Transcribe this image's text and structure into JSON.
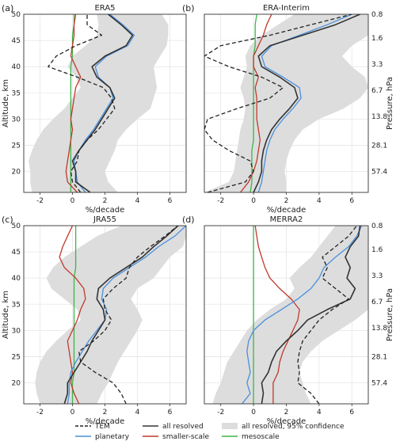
{
  "colors": {
    "TEM": "#222222",
    "all_resolved": "#333333",
    "planetary": "#4a8fdc",
    "smaller_scale": "#c0392b",
    "mesoscale": "#3cb54a",
    "confidence": "#dddddd",
    "grid": "#e6e6e6"
  },
  "legend": [
    {
      "key": "TEM",
      "label": "TEM",
      "style": "dashed",
      "color": "#222222"
    },
    {
      "key": "all_resolved",
      "label": "all resolved",
      "style": "solid",
      "color": "#333333"
    },
    {
      "key": "confidence",
      "label": "all resolved, 95% confidence",
      "style": "band",
      "color": "#dddddd"
    },
    {
      "key": "planetary",
      "label": "planetary",
      "style": "solid",
      "color": "#4a8fdc"
    },
    {
      "key": "smaller_scale",
      "label": "smaller-scale",
      "style": "solid",
      "color": "#c0392b"
    },
    {
      "key": "mesoscale",
      "label": "mesoscale",
      "style": "solid",
      "color": "#3cb54a"
    }
  ],
  "chart_data": [
    {
      "type": "line",
      "tag": "(a)",
      "title": "ERA5",
      "xlabel": "%/decade",
      "ylabel": "Altitude, km",
      "right_label": "",
      "xlim": [
        -3,
        7
      ],
      "ylim": [
        16,
        50
      ],
      "xticks": [
        "-2",
        "0",
        "2",
        "4",
        "6"
      ],
      "yticks": [
        "20",
        "25",
        "30",
        "35",
        "40",
        "45",
        "50"
      ],
      "pressure_ticks": [],
      "y": [
        16,
        18,
        20,
        22,
        24,
        26,
        28,
        30,
        32,
        34,
        36,
        38,
        40,
        42,
        44,
        46,
        48,
        50
      ],
      "band_low": [
        -2.5,
        -2.6,
        -2.6,
        -2.7,
        -2.5,
        -2.2,
        -1.8,
        -1.2,
        -0.5,
        0.0,
        0.5,
        0.2,
        -0.3,
        0.0,
        0.8,
        1.5,
        1.6,
        1.5
      ],
      "band_high": [
        2.8,
        2.2,
        2.0,
        2.3,
        2.6,
        2.8,
        3.3,
        4.0,
        4.8,
        5.0,
        5.2,
        5.1,
        5.0,
        5.4,
        5.8,
        5.9,
        5.9,
        5.5
      ],
      "series": [
        {
          "name": "TEM",
          "x": [
            0.5,
            0.0,
            -0.1,
            0.3,
            0.4,
            0.9,
            1.6,
            2.1,
            2.6,
            2.4,
            1.9,
            0.3,
            -1.5,
            -1.0,
            0.2,
            1.8,
            0.9,
            0.9
          ]
        },
        {
          "name": "all resolved",
          "x": [
            1.1,
            0.2,
            0.2,
            0.0,
            0.4,
            0.9,
            1.4,
            1.8,
            2.2,
            2.6,
            2.3,
            1.5,
            1.2,
            2.0,
            3.3,
            3.7,
            3.0,
            2.2
          ]
        },
        {
          "name": "planetary",
          "x": [
            0.8,
            0.3,
            0.2,
            0.1,
            0.4,
            0.8,
            1.3,
            1.7,
            2.1,
            2.5,
            2.3,
            1.6,
            1.4,
            2.1,
            3.4,
            3.8,
            3.1,
            2.3
          ]
        },
        {
          "name": "smaller-scale",
          "x": [
            0.3,
            -0.3,
            -0.4,
            -0.3,
            -0.2,
            -0.1,
            0.0,
            -0.1,
            0.0,
            0.1,
            0.2,
            0.5,
            0.2,
            -0.1,
            0.0,
            0.1,
            0.1,
            0.2
          ]
        },
        {
          "name": "mesoscale",
          "x": [
            -0.1,
            -0.1,
            -0.1,
            -0.1,
            -0.1,
            -0.1,
            -0.1,
            -0.1,
            -0.1,
            -0.1,
            -0.1,
            -0.1,
            -0.1,
            0.0,
            0.0,
            0.0,
            0.1,
            0.1
          ]
        }
      ]
    },
    {
      "type": "line",
      "tag": "(b)",
      "title": "ERA-Interim",
      "xlabel": "%/decade",
      "ylabel": "",
      "right_label": "Pressure, hPa",
      "xlim": [
        -3,
        7
      ],
      "ylim": [
        16,
        50
      ],
      "xticks": [
        "-2",
        "0",
        "2",
        "4",
        "6"
      ],
      "yticks": [],
      "pressure_ticks": [
        {
          "alt": 50,
          "label": "0.8"
        },
        {
          "alt": 45.5,
          "label": "1.6"
        },
        {
          "alt": 40.5,
          "label": "3.3"
        },
        {
          "alt": 35.5,
          "label": "6.7"
        },
        {
          "alt": 30.5,
          "label": "13.8"
        },
        {
          "alt": 25,
          "label": "28.1"
        },
        {
          "alt": 20,
          "label": "57.4"
        }
      ],
      "y": [
        16,
        18,
        20,
        22,
        24,
        26,
        28,
        30,
        32,
        34,
        36,
        38,
        40,
        42,
        44,
        46,
        48,
        50
      ],
      "band_low": [
        -3.0,
        -1.5,
        -1.2,
        -1.1,
        -1.0,
        -0.9,
        -0.8,
        -0.6,
        -0.5,
        -0.6,
        -0.8,
        -0.6,
        -0.4,
        -0.5,
        -0.2,
        0.5,
        1.5,
        2.5
      ],
      "band_high": [
        2.0,
        2.0,
        1.9,
        2.0,
        2.2,
        2.5,
        3.0,
        4.0,
        5.5,
        6.5,
        7.0,
        6.8,
        6.0,
        5.4,
        6.0,
        7.0,
        7.0,
        7.0
      ],
      "series": [
        {
          "name": "TEM",
          "x": [
            -2.8,
            -0.5,
            0.0,
            -0.2,
            -1.5,
            -2.5,
            -3.0,
            -2.8,
            -1.0,
            1.0,
            1.8,
            0.5,
            -1.5,
            -3.0,
            -2.0,
            1.0,
            3.5,
            6.0
          ]
        },
        {
          "name": "all resolved",
          "x": [
            0.0,
            0.3,
            0.5,
            0.5,
            0.6,
            0.8,
            1.1,
            1.6,
            2.2,
            2.7,
            2.5,
            1.6,
            0.5,
            0.3,
            1.0,
            3.0,
            5.0,
            6.5
          ]
        },
        {
          "name": "planetary",
          "x": [
            0.3,
            0.5,
            0.6,
            0.7,
            0.8,
            1.0,
            1.3,
            1.8,
            2.4,
            2.9,
            2.8,
            1.8,
            0.7,
            0.5,
            1.1,
            2.8,
            4.5,
            6.0
          ]
        },
        {
          "name": "smaller-scale",
          "x": [
            -0.8,
            -0.3,
            0.0,
            0.2,
            0.3,
            0.4,
            0.3,
            0.2,
            0.2,
            0.2,
            0.1,
            0.3,
            0.0,
            0.0,
            0.3,
            0.6,
            0.8,
            1.1
          ]
        },
        {
          "name": "mesoscale",
          "x": [
            -0.2,
            -0.1,
            -0.1,
            -0.1,
            -0.1,
            0.0,
            0.0,
            0.0,
            0.0,
            0.0,
            0.0,
            0.0,
            0.0,
            0.0,
            0.1,
            0.1,
            0.1,
            0.2
          ]
        }
      ]
    },
    {
      "type": "line",
      "tag": "(c)",
      "title": "JRA55",
      "xlabel": "%/decade",
      "ylabel": "Altitude, km",
      "right_label": "",
      "xlim": [
        -3,
        7
      ],
      "ylim": [
        16,
        50
      ],
      "xticks": [
        "-2",
        "0",
        "2",
        "4",
        "6"
      ],
      "yticks": [
        "20",
        "25",
        "30",
        "35",
        "40",
        "45",
        "50"
      ],
      "pressure_ticks": [],
      "y": [
        16,
        18,
        20,
        22,
        24,
        26,
        28,
        30,
        32,
        34,
        36,
        38,
        40,
        42,
        44,
        46,
        48,
        50
      ],
      "band_low": [
        -2.0,
        -2.2,
        -2.3,
        -2.2,
        -2.0,
        -1.6,
        -1.0,
        -0.3,
        0.5,
        0.3,
        -0.5,
        -1.3,
        -1.6,
        -1.2,
        -0.5,
        0.5,
        1.5,
        3.0
      ],
      "band_high": [
        1.5,
        1.8,
        2.2,
        2.5,
        2.8,
        3.2,
        3.6,
        4.0,
        4.3,
        4.0,
        3.6,
        4.0,
        5.0,
        5.5,
        6.0,
        6.8,
        7.0,
        7.0
      ],
      "series": [
        {
          "name": "TEM",
          "x": [
            3.3,
            3.0,
            2.5,
            1.4,
            0.5,
            0.4,
            1.3,
            2.0,
            2.4,
            2.0,
            1.9,
            2.5,
            3.3,
            3.5,
            4.0,
            4.8,
            5.7,
            6.5
          ]
        },
        {
          "name": "all resolved",
          "x": [
            -0.5,
            -0.3,
            -0.3,
            0.1,
            0.5,
            0.9,
            1.2,
            1.6,
            2.0,
            1.9,
            1.5,
            1.6,
            2.3,
            3.3,
            4.3,
            5.0,
            5.8,
            6.5
          ]
        },
        {
          "name": "planetary",
          "x": [
            -0.3,
            -0.2,
            -0.2,
            -0.1,
            0.2,
            0.6,
            1.0,
            1.5,
            2.0,
            2.1,
            1.8,
            1.9,
            2.5,
            3.5,
            4.5,
            5.3,
            6.3,
            7.0
          ]
        },
        {
          "name": "smaller-scale",
          "x": [
            0.4,
            0.1,
            -0.1,
            0.0,
            -0.1,
            -0.2,
            -0.3,
            0.0,
            0.3,
            0.5,
            0.8,
            0.7,
            0.2,
            -0.5,
            -0.8,
            -0.6,
            -0.3,
            0.0
          ]
        },
        {
          "name": "mesoscale",
          "x": [
            0.0,
            0.0,
            0.0,
            0.1,
            0.1,
            0.1,
            0.1,
            0.1,
            0.1,
            0.1,
            0.1,
            0.1,
            0.1,
            0.2,
            0.2,
            0.2,
            0.2,
            0.2
          ]
        }
      ]
    },
    {
      "type": "line",
      "tag": "(d)",
      "title": "MERRA2",
      "xlabel": "%/decade",
      "ylabel": "",
      "right_label": "Pressure, hPa",
      "xlim": [
        -3,
        7
      ],
      "ylim": [
        16,
        50
      ],
      "xticks": [
        "-2",
        "0",
        "2",
        "4",
        "6"
      ],
      "yticks": [],
      "pressure_ticks": [
        {
          "alt": 50,
          "label": "0.8"
        },
        {
          "alt": 45.5,
          "label": "1.6"
        },
        {
          "alt": 40.5,
          "label": "3.3"
        },
        {
          "alt": 35.5,
          "label": "6.7"
        },
        {
          "alt": 30.5,
          "label": "13.8"
        },
        {
          "alt": 25,
          "label": "28.1"
        },
        {
          "alt": 20,
          "label": "57.4"
        }
      ],
      "y": [
        16,
        18,
        20,
        22,
        24,
        26,
        28,
        30,
        32,
        34,
        36,
        38,
        40,
        42,
        44,
        46,
        48,
        50
      ],
      "band_low": [
        -2.5,
        -2.3,
        -2.0,
        -1.8,
        -1.6,
        -1.2,
        -0.8,
        -0.4,
        0.2,
        1.0,
        2.0,
        2.5,
        2.2,
        2.8,
        3.5,
        4.0,
        4.5,
        5.0
      ],
      "band_high": [
        3.5,
        3.2,
        3.0,
        2.8,
        3.0,
        3.5,
        4.2,
        5.2,
        6.2,
        7.0,
        7.0,
        7.0,
        7.0,
        7.0,
        7.0,
        7.0,
        7.0,
        7.0
      ],
      "series": [
        {
          "name": "TEM",
          "x": [
            4.0,
            3.5,
            2.7,
            2.8,
            2.7,
            2.8,
            3.0,
            3.5,
            4.0,
            4.8,
            5.8,
            5.0,
            4.2,
            4.5,
            4.2,
            5.0,
            5.8,
            6.3
          ]
        },
        {
          "name": "all resolved",
          "x": [
            0.5,
            0.6,
            0.5,
            0.9,
            1.1,
            1.4,
            2.0,
            2.7,
            3.3,
            4.5,
            5.9,
            6.2,
            5.7,
            5.9,
            5.6,
            5.9,
            6.4,
            6.5
          ]
        },
        {
          "name": "planetary",
          "x": [
            -0.7,
            -0.2,
            -0.4,
            -0.2,
            -0.3,
            -0.4,
            -0.3,
            0.0,
            0.7,
            1.7,
            2.7,
            3.5,
            4.0,
            4.3,
            5.0,
            5.8,
            6.3,
            6.6
          ]
        },
        {
          "name": "smaller-scale",
          "x": [
            1.2,
            1.2,
            1.2,
            1.5,
            1.6,
            1.8,
            2.1,
            2.4,
            2.7,
            2.8,
            2.3,
            1.6,
            1.0,
            0.7,
            0.5,
            0.3,
            0.2,
            0.1
          ]
        },
        {
          "name": "mesoscale",
          "x": [
            0.0,
            0.0,
            0.0,
            0.0,
            0.0,
            0.0,
            0.0,
            0.0,
            0.0,
            0.0,
            0.0,
            0.0,
            0.0,
            0.0,
            0.0,
            0.0,
            0.0,
            0.0
          ]
        }
      ]
    }
  ]
}
